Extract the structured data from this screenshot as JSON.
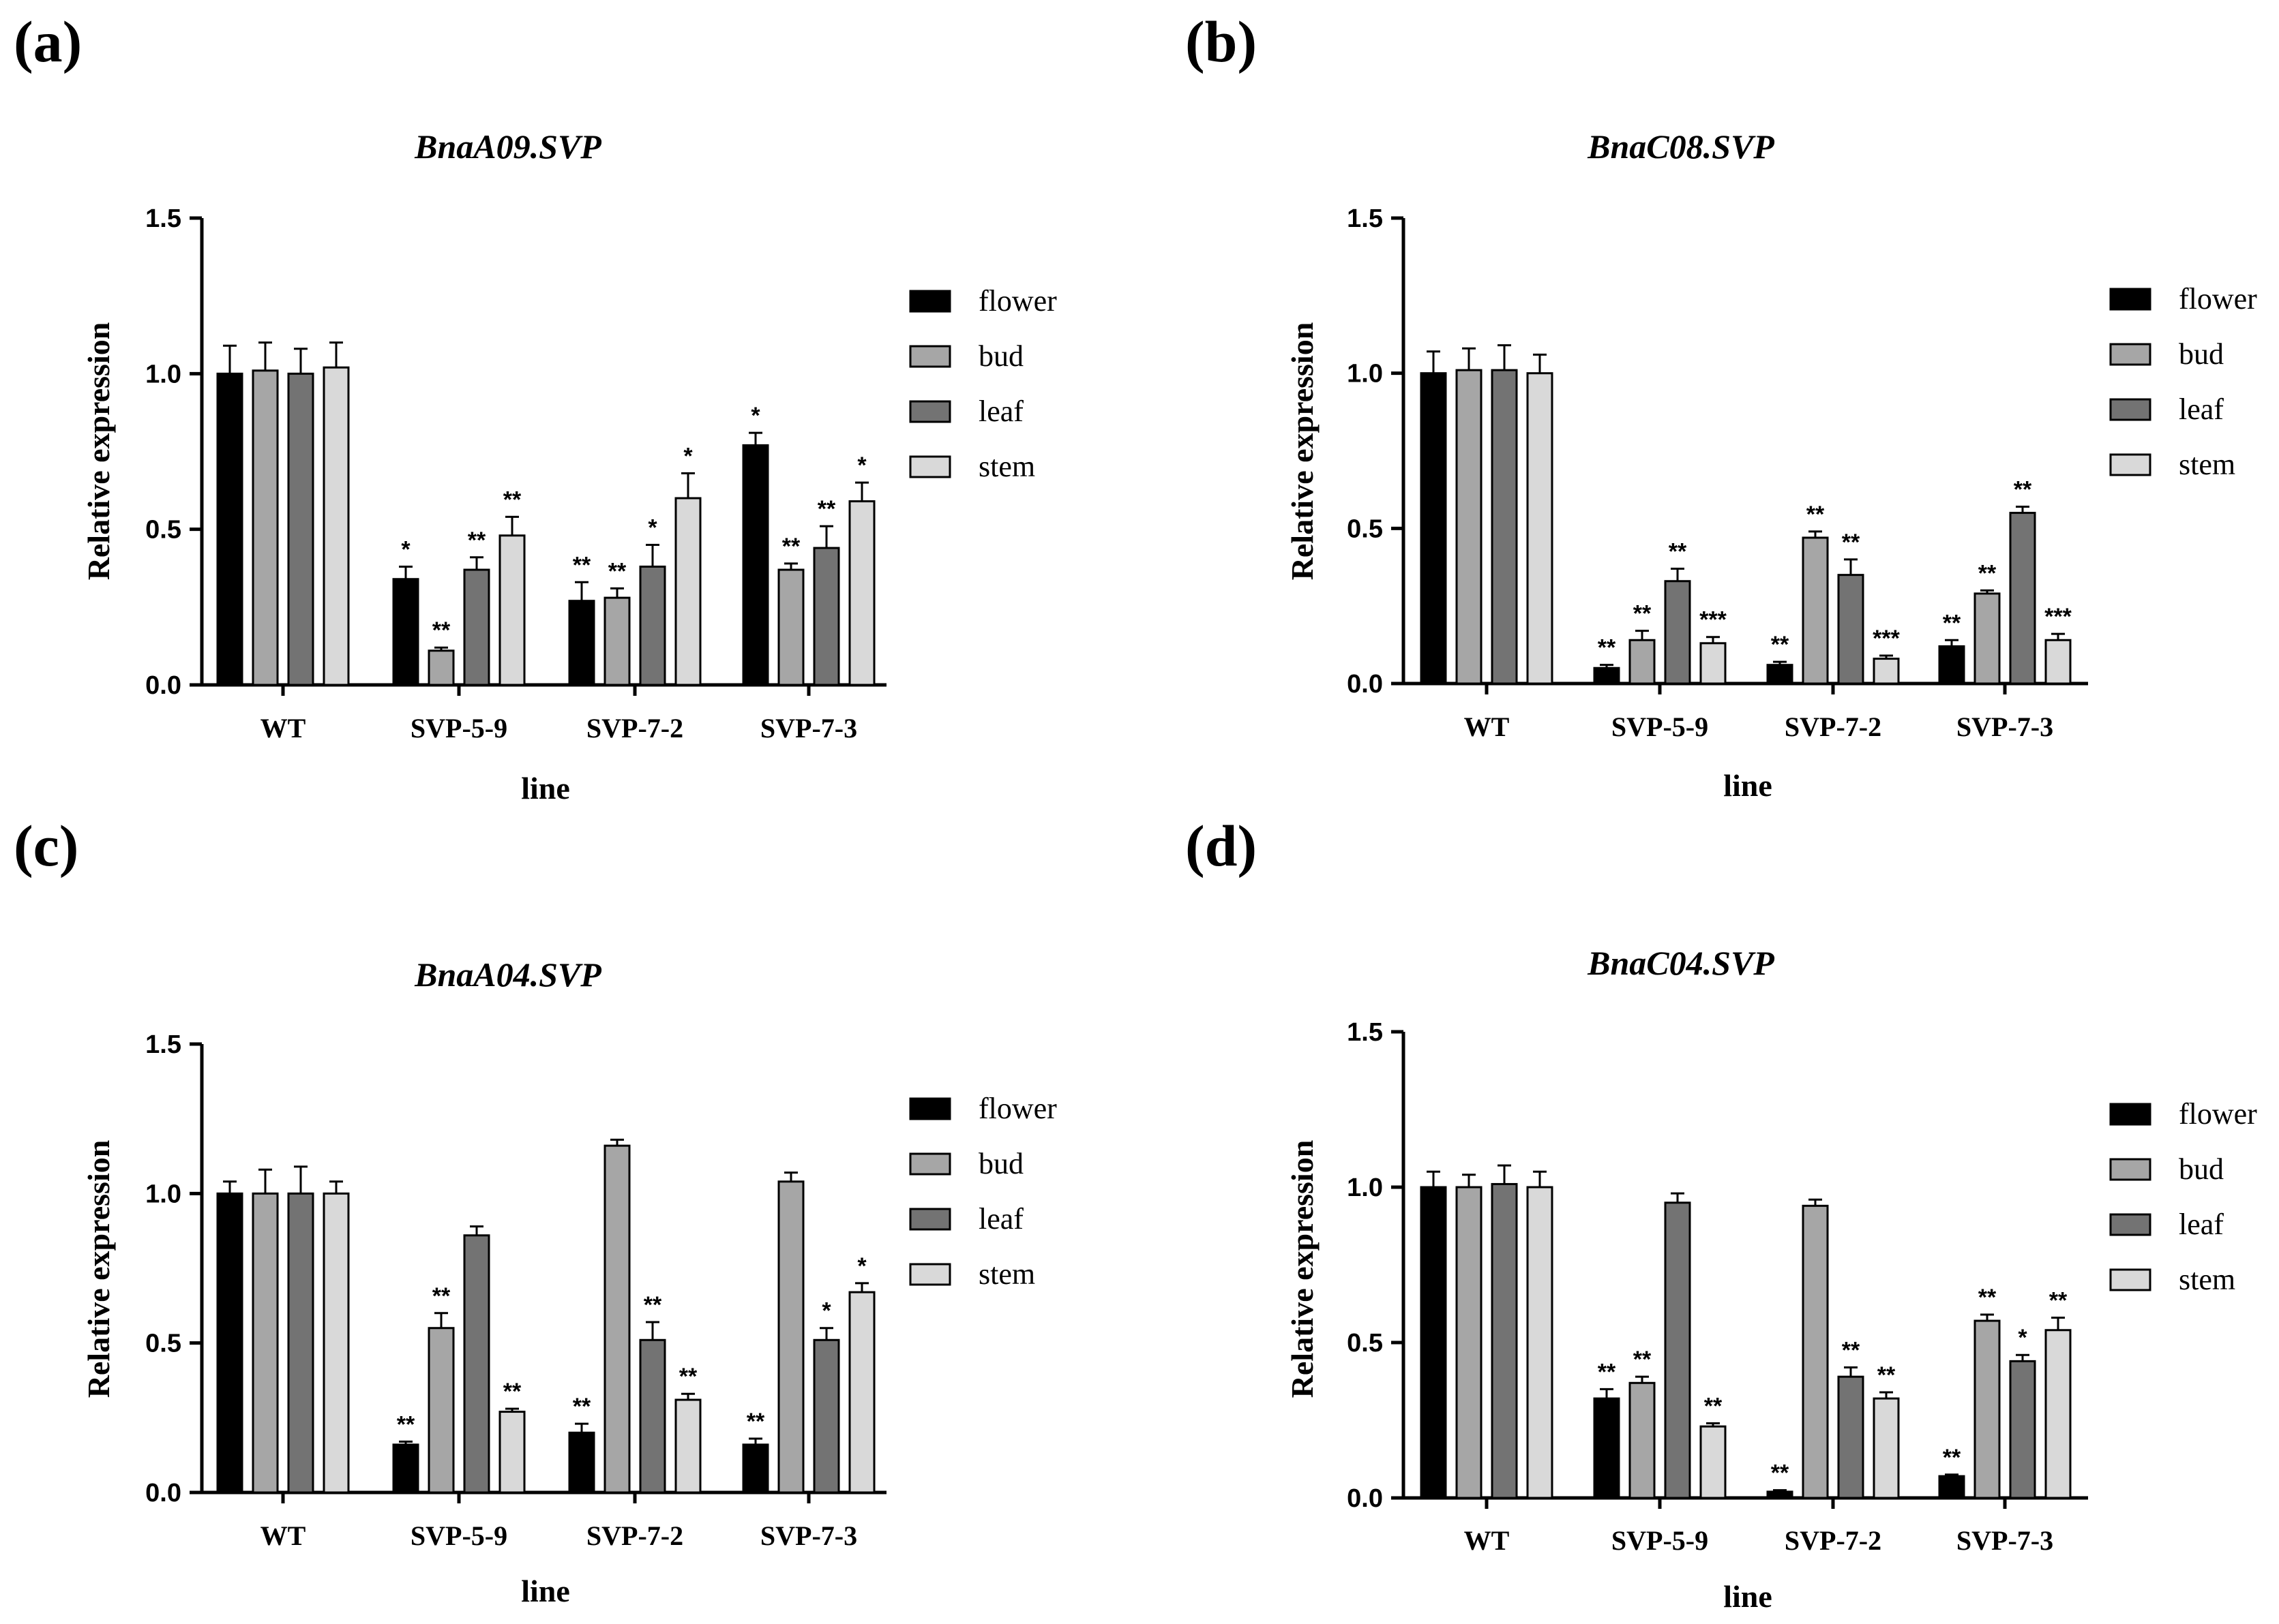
{
  "colors": {
    "flower": "#000000",
    "bud": "#a6a6a6",
    "leaf": "#737373",
    "stem": "#d9d9d9",
    "axis": "#000000"
  },
  "chart_data": [
    {
      "panel": "(a)",
      "type": "bar",
      "title": "BnaA09.SVP",
      "xlabel": "line",
      "ylabel": "Relative expression",
      "ylim": [
        0,
        1.5
      ],
      "yticks": [
        "0.0",
        "0.5",
        "1.0",
        "1.5"
      ],
      "legend_position": "right",
      "categories": [
        "WT",
        "SVP-5-9",
        "SVP-7-2",
        "SVP-7-3"
      ],
      "series": [
        {
          "name": "flower",
          "values": [
            1.0,
            0.34,
            0.27,
            0.77
          ],
          "errors": [
            0.09,
            0.04,
            0.06,
            0.04
          ],
          "sig": [
            "",
            "*",
            "**",
            "*"
          ]
        },
        {
          "name": "bud",
          "values": [
            1.01,
            0.11,
            0.28,
            0.37
          ],
          "errors": [
            0.09,
            0.01,
            0.03,
            0.02
          ],
          "sig": [
            "",
            "**",
            "**",
            "**"
          ]
        },
        {
          "name": "leaf",
          "values": [
            1.0,
            0.37,
            0.38,
            0.44
          ],
          "errors": [
            0.08,
            0.04,
            0.07,
            0.07
          ],
          "sig": [
            "",
            "**",
            "*",
            "**"
          ]
        },
        {
          "name": "stem",
          "values": [
            1.02,
            0.48,
            0.6,
            0.59
          ],
          "errors": [
            0.08,
            0.06,
            0.08,
            0.06
          ],
          "sig": [
            "",
            "**",
            "*",
            "*"
          ]
        }
      ]
    },
    {
      "panel": "(b)",
      "type": "bar",
      "title": "BnaC08.SVP",
      "xlabel": "line",
      "ylabel": "Relative expression",
      "ylim": [
        0,
        1.5
      ],
      "yticks": [
        "0.0",
        "0.5",
        "1.0",
        "1.5"
      ],
      "legend_position": "right",
      "categories": [
        "WT",
        "SVP-5-9",
        "SVP-7-2",
        "SVP-7-3"
      ],
      "series": [
        {
          "name": "flower",
          "values": [
            1.0,
            0.05,
            0.06,
            0.12
          ],
          "errors": [
            0.07,
            0.01,
            0.01,
            0.02
          ],
          "sig": [
            "",
            "**",
            "**",
            "**"
          ]
        },
        {
          "name": "bud",
          "values": [
            1.01,
            0.14,
            0.47,
            0.29
          ],
          "errors": [
            0.07,
            0.03,
            0.02,
            0.01
          ],
          "sig": [
            "",
            "**",
            "**",
            "**"
          ]
        },
        {
          "name": "leaf",
          "values": [
            1.01,
            0.33,
            0.35,
            0.55
          ],
          "errors": [
            0.08,
            0.04,
            0.05,
            0.02
          ],
          "sig": [
            "",
            "**",
            "**",
            "**"
          ]
        },
        {
          "name": "stem",
          "values": [
            1.0,
            0.13,
            0.08,
            0.14
          ],
          "errors": [
            0.06,
            0.02,
            0.01,
            0.02
          ],
          "sig": [
            "",
            "***",
            "***",
            "***"
          ]
        }
      ]
    },
    {
      "panel": "(c)",
      "type": "bar",
      "title": "BnaA04.SVP",
      "xlabel": "line",
      "ylabel": "Relative expression",
      "ylim": [
        0,
        1.5
      ],
      "yticks": [
        "0.0",
        "0.5",
        "1.0",
        "1.5"
      ],
      "legend_position": "right",
      "categories": [
        "WT",
        "SVP-5-9",
        "SVP-7-2",
        "SVP-7-3"
      ],
      "series": [
        {
          "name": "flower",
          "values": [
            1.0,
            0.16,
            0.2,
            0.16
          ],
          "errors": [
            0.04,
            0.01,
            0.03,
            0.02
          ],
          "sig": [
            "",
            "**",
            "**",
            "**"
          ]
        },
        {
          "name": "bud",
          "values": [
            1.0,
            0.55,
            1.16,
            1.04
          ],
          "errors": [
            0.08,
            0.05,
            0.02,
            0.03
          ],
          "sig": [
            "",
            "**",
            "",
            ""
          ]
        },
        {
          "name": "leaf",
          "values": [
            1.0,
            0.86,
            0.51,
            0.51
          ],
          "errors": [
            0.09,
            0.03,
            0.06,
            0.04
          ],
          "sig": [
            "",
            "",
            "**",
            "*"
          ]
        },
        {
          "name": "stem",
          "values": [
            1.0,
            0.27,
            0.31,
            0.67
          ],
          "errors": [
            0.04,
            0.01,
            0.02,
            0.03
          ],
          "sig": [
            "",
            "**",
            "**",
            "*"
          ]
        }
      ]
    },
    {
      "panel": "(d)",
      "type": "bar",
      "title": "BnaC04.SVP",
      "xlabel": "line",
      "ylabel": "Relative expression",
      "ylim": [
        0,
        1.5
      ],
      "yticks": [
        "0.0",
        "0.5",
        "1.0",
        "1.5"
      ],
      "legend_position": "right",
      "categories": [
        "WT",
        "SVP-5-9",
        "SVP-7-2",
        "SVP-7-3"
      ],
      "series": [
        {
          "name": "flower",
          "values": [
            1.0,
            0.32,
            0.02,
            0.07
          ],
          "errors": [
            0.05,
            0.03,
            0.005,
            0.005
          ],
          "sig": [
            "",
            "**",
            "**",
            "**"
          ]
        },
        {
          "name": "bud",
          "values": [
            1.0,
            0.37,
            0.94,
            0.57
          ],
          "errors": [
            0.04,
            0.02,
            0.02,
            0.02
          ],
          "sig": [
            "",
            "**",
            "",
            "**"
          ]
        },
        {
          "name": "leaf",
          "values": [
            1.01,
            0.95,
            0.39,
            0.44
          ],
          "errors": [
            0.06,
            0.03,
            0.03,
            0.02
          ],
          "sig": [
            "",
            "",
            "**",
            "*"
          ]
        },
        {
          "name": "stem",
          "values": [
            1.0,
            0.23,
            0.32,
            0.54
          ],
          "errors": [
            0.05,
            0.01,
            0.02,
            0.04
          ],
          "sig": [
            "",
            "**",
            "**",
            "**"
          ]
        }
      ]
    }
  ]
}
